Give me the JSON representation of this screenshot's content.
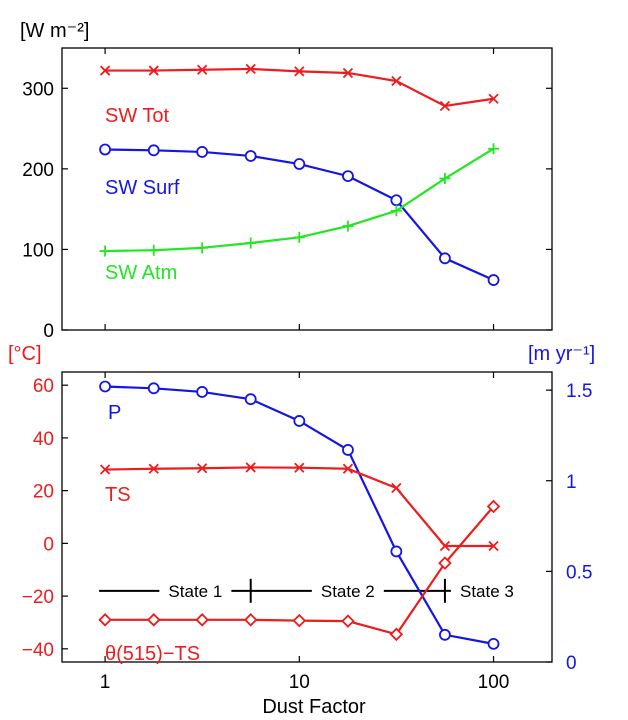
{
  "colors": {
    "red": "#ee1c1c",
    "blue": "#1515e6",
    "green": "#22e622",
    "black": "#000000"
  },
  "chart_data": [
    {
      "type": "line",
      "panel": "top",
      "ylabel": "[W m⁻²]",
      "xscale": "log",
      "xlim": [
        0.6,
        200
      ],
      "ylim": [
        0,
        350
      ],
      "yticks": [
        0,
        100,
        200,
        300
      ],
      "yticklabels": [
        "0",
        "100",
        "200",
        "300"
      ],
      "grid": false,
      "x": [
        1,
        1.78,
        3.16,
        5.62,
        10,
        17.8,
        31.6,
        56.2,
        100
      ],
      "series": [
        {
          "name": "SW Tot",
          "color": "#ee1c1c",
          "marker": "x",
          "values": [
            322,
            322,
            323,
            324,
            321,
            319,
            309,
            278,
            287
          ]
        },
        {
          "name": "SW Surf",
          "color": "#1515e6",
          "marker": "o",
          "values": [
            224,
            223,
            221,
            216,
            206,
            191,
            161,
            89,
            62
          ]
        },
        {
          "name": "SW Atm",
          "color": "#22e622",
          "marker": "+",
          "values": [
            98,
            99,
            102,
            108,
            115,
            129,
            148,
            188,
            225
          ]
        }
      ]
    },
    {
      "type": "line",
      "panel": "bottom",
      "xlabel": "Dust Factor",
      "xscale": "log",
      "xlim": [
        0.6,
        200
      ],
      "xticks": [
        1,
        10,
        100
      ],
      "xticklabels": [
        "1",
        "10",
        "100"
      ],
      "ylabel_left": "[°C]",
      "ylim_left": [
        -45,
        65
      ],
      "yticks_left": [
        -40,
        -20,
        0,
        20,
        40,
        60
      ],
      "yticklabels_left": [
        "−40",
        "−20",
        "0",
        "20",
        "40",
        "60"
      ],
      "ylabel_right": "[m yr⁻¹]",
      "ylim_right": [
        0,
        1.6
      ],
      "yticks_right": [
        0,
        0.5,
        1,
        1.5
      ],
      "yticklabels_right": [
        "0",
        "0.5",
        "1",
        "1.5"
      ],
      "grid": false,
      "x": [
        1,
        1.78,
        3.16,
        5.62,
        10,
        17.8,
        31.6,
        56.2,
        100
      ],
      "series": [
        {
          "name": "P",
          "axis": "right",
          "color": "#1515e6",
          "marker": "o",
          "values": [
            1.52,
            1.51,
            1.49,
            1.45,
            1.33,
            1.17,
            0.61,
            0.15,
            0.1
          ]
        },
        {
          "name": "TS",
          "axis": "left",
          "color": "#ee1c1c",
          "marker": "x",
          "values": [
            28,
            28.3,
            28.5,
            28.8,
            28.7,
            28.3,
            21,
            -1,
            -1
          ]
        },
        {
          "name": "θ(515)−TS",
          "axis": "left",
          "color": "#ee1c1c",
          "marker": "diamond",
          "values": [
            -29,
            -29,
            -29,
            -29,
            -29.3,
            -29.5,
            -34.5,
            -7.5,
            14
          ]
        }
      ],
      "states": {
        "y": -18,
        "boundaries": [
          5.62,
          56.2
        ],
        "start": 1,
        "end": 100,
        "labels": [
          "State 1",
          "State 2",
          "State 3"
        ]
      }
    }
  ]
}
